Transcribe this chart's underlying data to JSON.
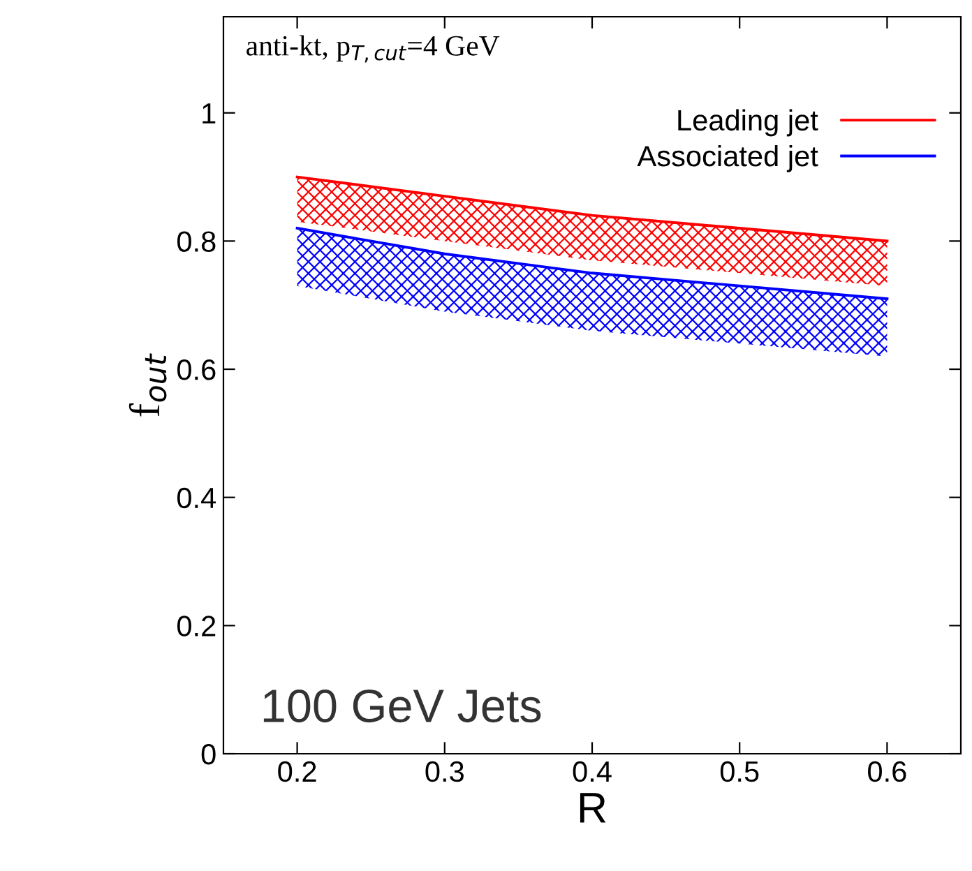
{
  "chart_data": {
    "type": "line",
    "xlabel": "R",
    "ylabel": "f$_{out}$",
    "x": [
      0.2,
      0.3,
      0.4,
      0.5,
      0.6
    ],
    "series": [
      {
        "name": "Leading jet",
        "color": "#ff0000",
        "values": [
          0.9,
          0.87,
          0.84,
          0.82,
          0.8
        ],
        "upper": [
          0.9,
          0.87,
          0.84,
          0.82,
          0.8
        ],
        "lower": [
          0.83,
          0.8,
          0.77,
          0.75,
          0.73
        ]
      },
      {
        "name": "Associated jet",
        "color": "#0000ff",
        "values": [
          0.82,
          0.78,
          0.75,
          0.73,
          0.71
        ],
        "upper": [
          0.82,
          0.78,
          0.75,
          0.73,
          0.71
        ],
        "lower": [
          0.73,
          0.69,
          0.66,
          0.64,
          0.62
        ]
      }
    ],
    "xlim": [
      0.15,
      0.65
    ],
    "ylim": [
      0,
      1.15
    ],
    "xticks": [
      0.2,
      0.3,
      0.4,
      0.5,
      0.6
    ],
    "yticks": [
      0,
      0.2,
      0.4,
      0.6,
      0.8,
      1
    ],
    "grid": false,
    "legend": "top right",
    "annotations": [
      "anti-kt, p$_{T,cut}$=4 GeV",
      "100 GeV Jets"
    ]
  }
}
